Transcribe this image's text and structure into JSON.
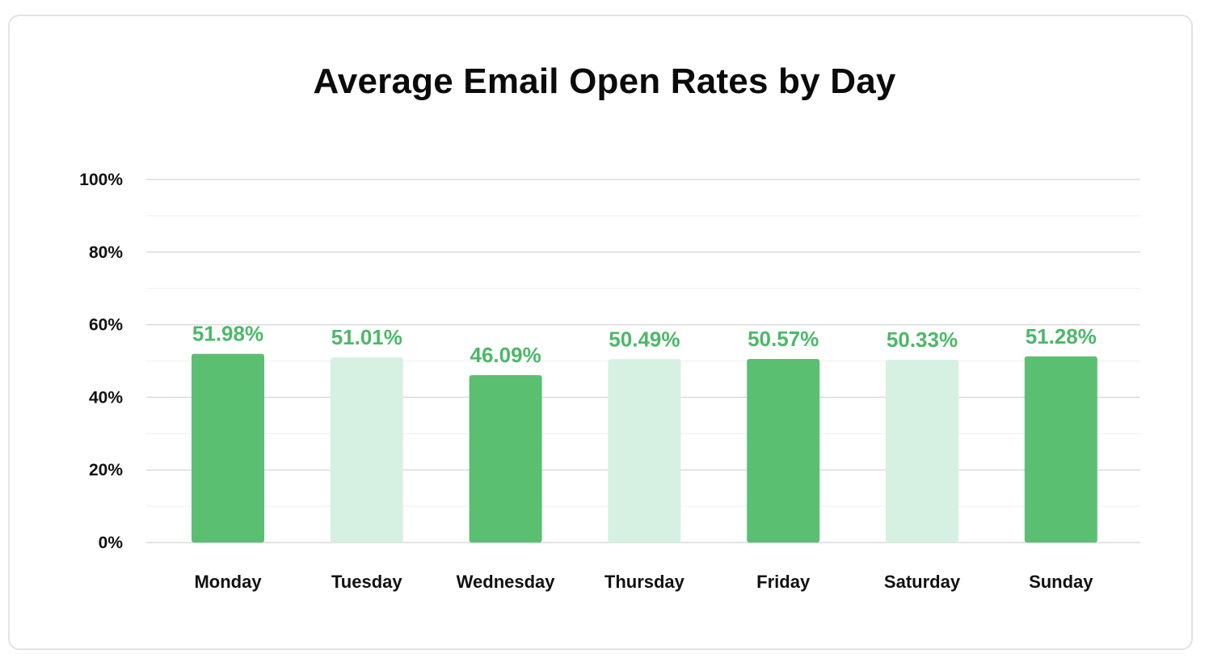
{
  "chart_data": {
    "type": "bar",
    "title": "Average Email Open Rates by Day",
    "xlabel": "",
    "ylabel": "",
    "categories": [
      "Monday",
      "Tuesday",
      "Wednesday",
      "Thursday",
      "Friday",
      "Saturday",
      "Sunday"
    ],
    "values": [
      51.98,
      51.01,
      46.09,
      50.49,
      50.57,
      50.33,
      51.28
    ],
    "data_labels": [
      "51.98%",
      "51.01%",
      "46.09%",
      "50.49%",
      "50.57%",
      "50.33%",
      "51.28%"
    ],
    "ylim": [
      0,
      100
    ],
    "yticks": [
      0,
      20,
      40,
      60,
      80,
      100
    ],
    "ytick_labels": [
      "0%",
      "20%",
      "40%",
      "60%",
      "80%",
      "100%"
    ],
    "grid": true,
    "legend": "none",
    "bar_emphasis": [
      true,
      false,
      true,
      false,
      true,
      false,
      true
    ],
    "colors": {
      "bar_primary": "#5bbf72",
      "bar_light": "#d6f1e1",
      "data_label": "#4cb868",
      "grid_major": "#dcdcdc",
      "grid_minor": "#efefef"
    }
  }
}
